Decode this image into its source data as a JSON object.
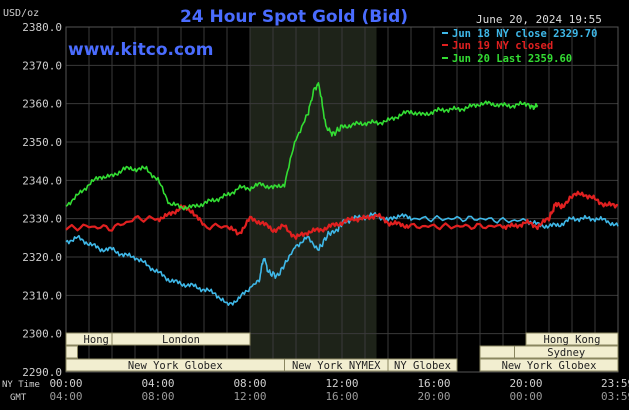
{
  "chart_data": {
    "type": "line",
    "title": "24 Hour Spot Gold (Bid)",
    "source_text": "www.kitco.com",
    "timestamp": "June 20, 2024 19:55",
    "ylabel": "USD/oz",
    "ylim": [
      2290,
      2380
    ],
    "yticks": [
      "2380.0",
      "2370.0",
      "2360.0",
      "2350.0",
      "2340.0",
      "2330.0",
      "2320.0",
      "2310.0",
      "2300.0",
      "2290.0"
    ],
    "ytick_values": [
      2380,
      2370,
      2360,
      2350,
      2340,
      2330,
      2320,
      2310,
      2300,
      2290
    ],
    "xlim": [
      0,
      24
    ],
    "x_row1_label": "NY Time",
    "x_row2_label": "GMT",
    "xticks_ny": [
      "00:00",
      "04:00",
      "08:00",
      "12:00",
      "16:00",
      "20:00",
      "23:59"
    ],
    "xticks_gmt": [
      "04:00",
      "08:00",
      "12:00",
      "16:00",
      "20:00",
      "00:00",
      "03:59"
    ],
    "xtick_hours": [
      0,
      4,
      8,
      12,
      16,
      20,
      23.98
    ],
    "highlight_hours": [
      8,
      13.5
    ],
    "grid": true,
    "legend_position": "top-right",
    "colors": {
      "background": "#000000",
      "grid": "#3a3a3a",
      "highlight": "#1e2319",
      "title": "#4a6cff",
      "source": "#4a6cff",
      "axis_text": "#cfcfcf",
      "session_fill": "#f2eed0"
    },
    "series": [
      {
        "name": "Jun 18 NY close 2329.70",
        "color": "#3fb8e8",
        "points": [
          [
            0,
            2324
          ],
          [
            0.5,
            2325
          ],
          [
            1,
            2323.5
          ],
          [
            1.5,
            2322
          ],
          [
            2,
            2322
          ],
          [
            2.5,
            2320.5
          ],
          [
            3,
            2320
          ],
          [
            3.5,
            2318
          ],
          [
            4,
            2316
          ],
          [
            4.5,
            2314
          ],
          [
            5,
            2313
          ],
          [
            5.5,
            2312.5
          ],
          [
            6,
            2311.5
          ],
          [
            6.5,
            2310.5
          ],
          [
            7,
            2307.5
          ],
          [
            7.5,
            2309
          ],
          [
            8,
            2312
          ],
          [
            8.4,
            2314
          ],
          [
            8.6,
            2320
          ],
          [
            8.8,
            2316
          ],
          [
            9.2,
            2315
          ],
          [
            9.6,
            2319
          ],
          [
            10,
            2323
          ],
          [
            10.5,
            2325
          ],
          [
            11,
            2322
          ],
          [
            11.4,
            2326
          ],
          [
            11.8,
            2327
          ],
          [
            12,
            2329
          ],
          [
            12.5,
            2330
          ],
          [
            13,
            2330.5
          ],
          [
            13.5,
            2331
          ],
          [
            14,
            2329.5
          ],
          [
            14.5,
            2331
          ],
          [
            15,
            2330
          ],
          [
            16,
            2330
          ],
          [
            17,
            2330
          ],
          [
            18,
            2330
          ],
          [
            19,
            2329.5
          ],
          [
            20,
            2329.5
          ],
          [
            20.5,
            2328.5
          ],
          [
            21,
            2328
          ],
          [
            21.5,
            2328.5
          ],
          [
            22,
            2330
          ],
          [
            22.5,
            2330
          ],
          [
            23,
            2330
          ],
          [
            23.5,
            2329.5
          ],
          [
            24,
            2328
          ]
        ]
      },
      {
        "name": "Jun 19 NY closed",
        "color": "#e02020",
        "points": [
          [
            0,
            2327.5
          ],
          [
            1,
            2328
          ],
          [
            2,
            2327.5
          ],
          [
            3,
            2330
          ],
          [
            4,
            2330
          ],
          [
            4.5,
            2331
          ],
          [
            5,
            2333
          ],
          [
            5.5,
            2332
          ],
          [
            6,
            2328
          ],
          [
            7,
            2328
          ],
          [
            7.5,
            2326
          ],
          [
            8,
            2330
          ],
          [
            8.5,
            2329
          ],
          [
            9,
            2327
          ],
          [
            9.5,
            2328
          ],
          [
            10,
            2325
          ],
          [
            10.5,
            2326.5
          ],
          [
            11,
            2327
          ],
          [
            11.5,
            2328
          ],
          [
            12,
            2329
          ],
          [
            12.5,
            2330
          ],
          [
            13,
            2330
          ],
          [
            13.5,
            2331
          ],
          [
            14,
            2329
          ],
          [
            14.5,
            2328.5
          ],
          [
            15,
            2328
          ],
          [
            16,
            2328
          ],
          [
            17,
            2328
          ],
          [
            18,
            2328
          ],
          [
            19,
            2328
          ],
          [
            19.5,
            2328
          ],
          [
            20,
            2329
          ],
          [
            20.5,
            2328
          ],
          [
            21,
            2330
          ],
          [
            21.3,
            2334
          ],
          [
            21.6,
            2333
          ],
          [
            22,
            2336
          ],
          [
            22.5,
            2336.5
          ],
          [
            23,
            2335
          ],
          [
            23.5,
            2333.5
          ],
          [
            24,
            2333.5
          ]
        ]
      },
      {
        "name": "Jun 20 Last 2359.60",
        "color": "#33dd33",
        "points": [
          [
            0,
            2333.5
          ],
          [
            0.5,
            2336
          ],
          [
            1,
            2339
          ],
          [
            1.5,
            2341
          ],
          [
            2,
            2341
          ],
          [
            2.5,
            2343
          ],
          [
            3,
            2343
          ],
          [
            3.5,
            2343
          ],
          [
            4,
            2340
          ],
          [
            4.5,
            2334
          ],
          [
            5,
            2333
          ],
          [
            5.5,
            2333
          ],
          [
            6,
            2334
          ],
          [
            6.5,
            2335
          ],
          [
            7,
            2336
          ],
          [
            7.5,
            2338
          ],
          [
            8,
            2338
          ],
          [
            8.5,
            2339
          ],
          [
            9,
            2338
          ],
          [
            9.5,
            2339
          ],
          [
            10,
            2351
          ],
          [
            10.5,
            2357
          ],
          [
            10.8,
            2364
          ],
          [
            11,
            2365
          ],
          [
            11.3,
            2354
          ],
          [
            11.6,
            2352
          ],
          [
            12,
            2354
          ],
          [
            12.5,
            2354.5
          ],
          [
            13,
            2355
          ],
          [
            13.5,
            2355
          ],
          [
            14,
            2355.5
          ],
          [
            14.5,
            2357
          ],
          [
            15,
            2358
          ],
          [
            15.5,
            2357
          ],
          [
            16,
            2358
          ],
          [
            16.5,
            2358.5
          ],
          [
            17,
            2358.5
          ],
          [
            17.5,
            2359
          ],
          [
            18,
            2360
          ],
          [
            18.5,
            2360
          ],
          [
            19,
            2359.5
          ],
          [
            19.5,
            2359.5
          ],
          [
            20,
            2360
          ],
          [
            20.3,
            2359
          ],
          [
            20.5,
            2359.6
          ]
        ]
      }
    ],
    "sessions": [
      {
        "name": "Hong Kong",
        "start": 0,
        "end": 4
      },
      {
        "name": "London",
        "start": 2,
        "end": 8
      },
      {
        "name": "",
        "start": 0,
        "end": 0.5
      },
      {
        "name": "New York Globex",
        "start": 0,
        "end": 9.5
      },
      {
        "name": "New York NYMEX",
        "start": 9.5,
        "end": 14
      },
      {
        "name": "NY Globex",
        "start": 14,
        "end": 17
      },
      {
        "name": "Hong Kong",
        "start": 20,
        "end": 24
      },
      {
        "name": "Sydney",
        "start": 19.5,
        "end": 24
      },
      {
        "name": "",
        "start": 18,
        "end": 19.5
      },
      {
        "name": "New York Globex",
        "start": 18,
        "end": 24
      }
    ]
  }
}
